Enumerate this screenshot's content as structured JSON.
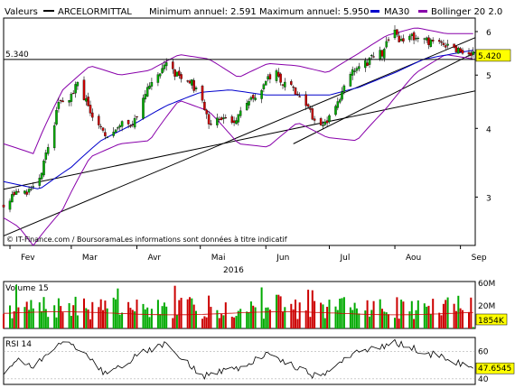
{
  "header": {
    "values_label": "Valeurs",
    "series_name": "ARCELORMITTAL",
    "min_max_text": "Minimum annuel: 2.591 Maximum annuel: 5.950",
    "ma_label": "MA30",
    "bollinger_label": "Bollinger 20 2.0"
  },
  "colors": {
    "up": "#00aa00",
    "down": "#cc0000",
    "ma": "#0000cc",
    "bollinger": "#8800aa",
    "frame": "#000000",
    "background": "#ffffff",
    "price_box": "#ffff00"
  },
  "price_panel": {
    "ref_level_label": "5.340",
    "ref_level": 5.34,
    "last_price_label": "5.420",
    "y_ticks": [
      "6",
      "5",
      "4",
      "3"
    ],
    "watermark": "© IT-Finance.com / BoursoramaLes informations sont données à titre indicatif"
  },
  "x_axis": {
    "months": [
      "Fev",
      "Mar",
      "Avr",
      "Mai",
      "Jun",
      "Jul",
      "Aou",
      "Sep"
    ],
    "year": "2016"
  },
  "volume_panel": {
    "title": "Volume 15",
    "top_label": "60M",
    "mid_label": "20M",
    "last_label": "1854K"
  },
  "rsi_panel": {
    "title": "RSI 14",
    "top_label": "60",
    "bottom_label": "40",
    "last_label": "47.6545"
  },
  "chart_data": {
    "type": "candlestick",
    "x_axis": {
      "start": "2016-01-29",
      "end": "2016-09-08",
      "months": [
        "Fev",
        "Mar",
        "Avr",
        "Mai",
        "Jun",
        "Jul",
        "Aou",
        "Sep"
      ]
    },
    "y_axis": {
      "scale": "log",
      "range": [
        2.45,
        6.35
      ],
      "ticks": [
        3,
        4,
        5,
        6
      ]
    },
    "anchors_close": [
      [
        "2016-01-29",
        2.9
      ],
      [
        "2016-02-05",
        3.12
      ],
      [
        "2016-02-11",
        3.05
      ],
      [
        "2016-02-16",
        3.3
      ],
      [
        "2016-02-19",
        3.75
      ],
      [
        "2016-02-22",
        4.1
      ],
      [
        "2016-02-24",
        4.4
      ],
      [
        "2016-02-29",
        4.55
      ],
      [
        "2016-03-04",
        4.8
      ],
      [
        "2016-03-09",
        4.4
      ],
      [
        "2016-03-14",
        4.05
      ],
      [
        "2016-03-17",
        3.85
      ],
      [
        "2016-03-22",
        3.95
      ],
      [
        "2016-03-25",
        4.05
      ],
      [
        "2016-03-30",
        4.1
      ],
      [
        "2016-04-04",
        4.5
      ],
      [
        "2016-04-08",
        4.9
      ],
      [
        "2016-04-11",
        5.05
      ],
      [
        "2016-04-14",
        5.25
      ],
      [
        "2016-04-18",
        5.05
      ],
      [
        "2016-04-22",
        4.95
      ],
      [
        "2016-04-26",
        4.9
      ],
      [
        "2016-05-02",
        4.45
      ],
      [
        "2016-05-05",
        4.1
      ],
      [
        "2016-05-10",
        4.2
      ],
      [
        "2016-05-16",
        4.1
      ],
      [
        "2016-05-20",
        4.25
      ],
      [
        "2016-05-26",
        4.55
      ],
      [
        "2016-06-01",
        4.85
      ],
      [
        "2016-06-06",
        5.05
      ],
      [
        "2016-06-10",
        4.8
      ],
      [
        "2016-06-14",
        4.7
      ],
      [
        "2016-06-17",
        4.6
      ],
      [
        "2016-06-23",
        4.2
      ],
      [
        "2016-06-27",
        4.05
      ],
      [
        "2016-07-01",
        4.2
      ],
      [
        "2016-07-06",
        4.55
      ],
      [
        "2016-07-08",
        4.75
      ],
      [
        "2016-07-12",
        5.1
      ],
      [
        "2016-07-15",
        5.2
      ],
      [
        "2016-07-19",
        5.25
      ],
      [
        "2016-07-21",
        5.35
      ],
      [
        "2016-07-26",
        5.5
      ],
      [
        "2016-07-28",
        5.75
      ],
      [
        "2016-08-01",
        5.95
      ],
      [
        "2016-08-03",
        5.7
      ],
      [
        "2016-08-05",
        5.8
      ],
      [
        "2016-08-09",
        5.9
      ],
      [
        "2016-08-12",
        5.85
      ],
      [
        "2016-08-16",
        5.75
      ],
      [
        "2016-08-19",
        5.8
      ],
      [
        "2016-08-23",
        5.7
      ],
      [
        "2016-08-26",
        5.65
      ],
      [
        "2016-08-30",
        5.6
      ],
      [
        "2016-09-02",
        5.4
      ],
      [
        "2016-09-07",
        5.42
      ]
    ],
    "trendlines": [
      {
        "points": [
          [
            "2016-01-29",
            2.55
          ],
          [
            "2016-09-08",
            5.85
          ]
        ]
      },
      {
        "points": [
          [
            "2016-01-29",
            3.1
          ],
          [
            "2016-09-08",
            4.68
          ]
        ]
      },
      {
        "points": [
          [
            "2016-06-14",
            3.75
          ],
          [
            "2016-09-08",
            5.5
          ]
        ]
      }
    ],
    "ma30_anchors": [
      [
        "2016-01-29",
        3.2
      ],
      [
        "2016-02-15",
        3.1
      ],
      [
        "2016-03-01",
        3.4
      ],
      [
        "2016-03-15",
        3.8
      ],
      [
        "2016-04-01",
        4.1
      ],
      [
        "2016-04-15",
        4.4
      ],
      [
        "2016-05-01",
        4.65
      ],
      [
        "2016-05-15",
        4.7
      ],
      [
        "2016-06-01",
        4.6
      ],
      [
        "2016-06-15",
        4.6
      ],
      [
        "2016-07-01",
        4.6
      ],
      [
        "2016-07-15",
        4.75
      ],
      [
        "2016-08-01",
        5.05
      ],
      [
        "2016-08-15",
        5.35
      ],
      [
        "2016-09-07",
        5.55
      ]
    ],
    "bollinger_upper_anchors": [
      [
        "2016-01-29",
        3.75
      ],
      [
        "2016-02-12",
        3.6
      ],
      [
        "2016-02-26",
        4.7
      ],
      [
        "2016-03-10",
        5.2
      ],
      [
        "2016-03-24",
        5.0
      ],
      [
        "2016-04-07",
        5.1
      ],
      [
        "2016-04-21",
        5.45
      ],
      [
        "2016-05-05",
        5.35
      ],
      [
        "2016-05-19",
        4.95
      ],
      [
        "2016-06-02",
        5.25
      ],
      [
        "2016-06-16",
        5.2
      ],
      [
        "2016-06-30",
        5.05
      ],
      [
        "2016-07-14",
        5.45
      ],
      [
        "2016-07-28",
        5.9
      ],
      [
        "2016-08-11",
        6.1
      ],
      [
        "2016-08-25",
        5.95
      ],
      [
        "2016-09-07",
        5.95
      ]
    ],
    "bollinger_lower_anchors": [
      [
        "2016-01-29",
        2.75
      ],
      [
        "2016-02-05",
        2.65
      ],
      [
        "2016-02-12",
        2.45
      ],
      [
        "2016-02-26",
        2.85
      ],
      [
        "2016-03-10",
        3.55
      ],
      [
        "2016-03-24",
        3.75
      ],
      [
        "2016-04-07",
        3.8
      ],
      [
        "2016-04-21",
        4.5
      ],
      [
        "2016-05-05",
        4.3
      ],
      [
        "2016-05-19",
        3.75
      ],
      [
        "2016-06-02",
        3.7
      ],
      [
        "2016-06-16",
        4.1
      ],
      [
        "2016-06-30",
        3.85
      ],
      [
        "2016-07-14",
        3.8
      ],
      [
        "2016-07-28",
        4.35
      ],
      [
        "2016-08-11",
        5.05
      ],
      [
        "2016-08-25",
        5.45
      ],
      [
        "2016-09-07",
        5.35
      ]
    ],
    "volume": {
      "unit": "M",
      "range": [
        0,
        62
      ],
      "last": 1.854,
      "ma_level": 20
    },
    "rsi": {
      "range": [
        36,
        70
      ],
      "last": 47.6545
    },
    "rsi_anchors": [
      [
        "2016-01-29",
        44
      ],
      [
        "2016-02-05",
        55
      ],
      [
        "2016-02-12",
        48
      ],
      [
        "2016-02-22",
        63
      ],
      [
        "2016-03-01",
        66
      ],
      [
        "2016-03-09",
        55
      ],
      [
        "2016-03-17",
        44
      ],
      [
        "2016-03-25",
        50
      ],
      [
        "2016-04-05",
        60
      ],
      [
        "2016-04-14",
        65
      ],
      [
        "2016-04-22",
        55
      ],
      [
        "2016-05-02",
        42
      ],
      [
        "2016-05-10",
        46
      ],
      [
        "2016-05-20",
        48
      ],
      [
        "2016-06-01",
        58
      ],
      [
        "2016-06-10",
        52
      ],
      [
        "2016-06-20",
        45
      ],
      [
        "2016-06-27",
        40
      ],
      [
        "2016-07-05",
        52
      ],
      [
        "2016-07-14",
        60
      ],
      [
        "2016-07-22",
        62
      ],
      [
        "2016-08-01",
        66
      ],
      [
        "2016-08-10",
        62
      ],
      [
        "2016-08-18",
        58
      ],
      [
        "2016-08-26",
        55
      ],
      [
        "2016-09-02",
        50
      ],
      [
        "2016-09-07",
        47.65
      ]
    ]
  }
}
